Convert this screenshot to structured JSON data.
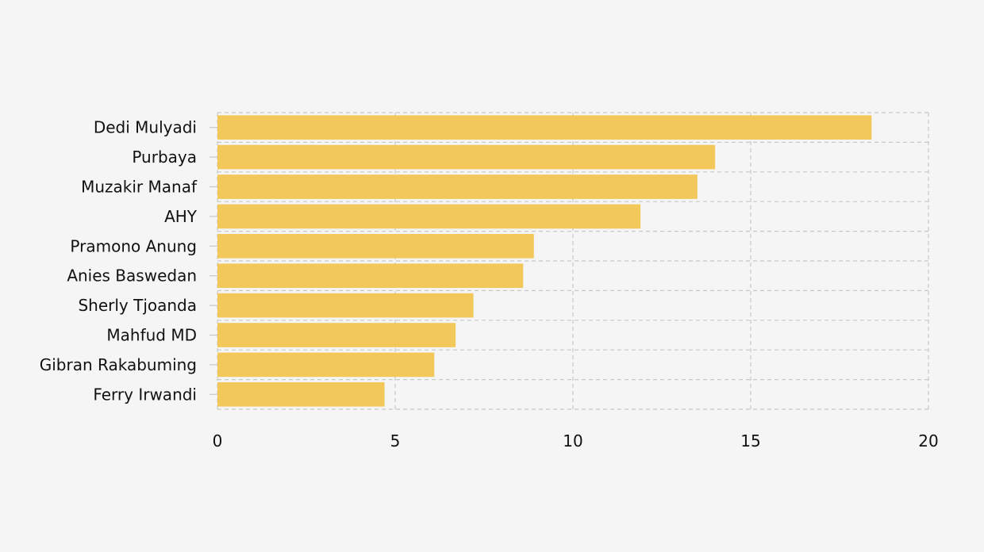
{
  "chart_data": {
    "type": "bar",
    "orientation": "horizontal",
    "categories": [
      "Dedi Mulyadi",
      "Purbaya",
      "Muzakir Manaf",
      "AHY",
      "Pramono Anung",
      "Anies Baswedan",
      "Sherly Tjoanda",
      "Mahfud MD",
      "Gibran Rakabuming",
      "Ferry Irwandi"
    ],
    "values": [
      18.4,
      14.0,
      13.5,
      11.9,
      8.9,
      8.6,
      7.2,
      6.7,
      6.1,
      4.7
    ],
    "title": "",
    "xlabel": "",
    "ylabel": "",
    "xlim": [
      0,
      20
    ],
    "xticks": [
      0,
      5,
      10,
      15,
      20
    ],
    "xtick_labels": [
      "0",
      "5",
      "10",
      "15",
      "20"
    ],
    "grid": true,
    "bar_color": "#f0c550",
    "background_color": "#f5f5f5",
    "grid_color": "#c8c8c8"
  }
}
